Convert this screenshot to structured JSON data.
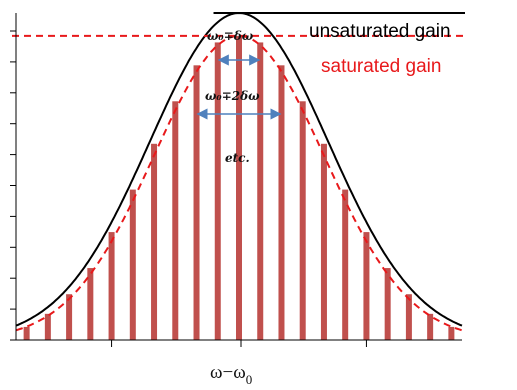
{
  "chart_data": {
    "type": "bar",
    "title": "",
    "xlabel": "ω−ω₀",
    "xlabel_main": "ω−ω",
    "xlabel_sub": "0",
    "ylabel": "",
    "x": [
      -10,
      -9,
      -8,
      -7,
      -6,
      -5,
      -4,
      -3,
      -2,
      -1,
      0,
      1,
      2,
      3,
      4,
      5,
      6,
      7,
      8,
      9,
      10
    ],
    "values": [
      0.04,
      0.08,
      0.14,
      0.22,
      0.33,
      0.46,
      0.6,
      0.73,
      0.84,
      0.91,
      0.93,
      0.91,
      0.84,
      0.73,
      0.6,
      0.46,
      0.33,
      0.22,
      0.14,
      0.08,
      0.04
    ],
    "xlim": [
      -10.5,
      10.5
    ],
    "ylim": [
      0,
      1.0
    ],
    "curves": {
      "unsaturated_gain": {
        "label": "unsaturated gain",
        "color": "#000000",
        "peak": 1.0,
        "sigma": 4.2
      },
      "saturated_gain": {
        "label": "saturated gain",
        "color": "#e8191b",
        "peak": 0.93,
        "sigma": 4.0,
        "threshold": 0.93
      }
    },
    "annotations": {
      "d1": "ω₀∓δω",
      "d2": "ω₀∓2δω",
      "etc": "etc."
    },
    "colors": {
      "bars": "#c0504d",
      "arrows": "#4f81bd",
      "axes": "#000000"
    },
    "y_ticks": 11,
    "grid": false
  }
}
